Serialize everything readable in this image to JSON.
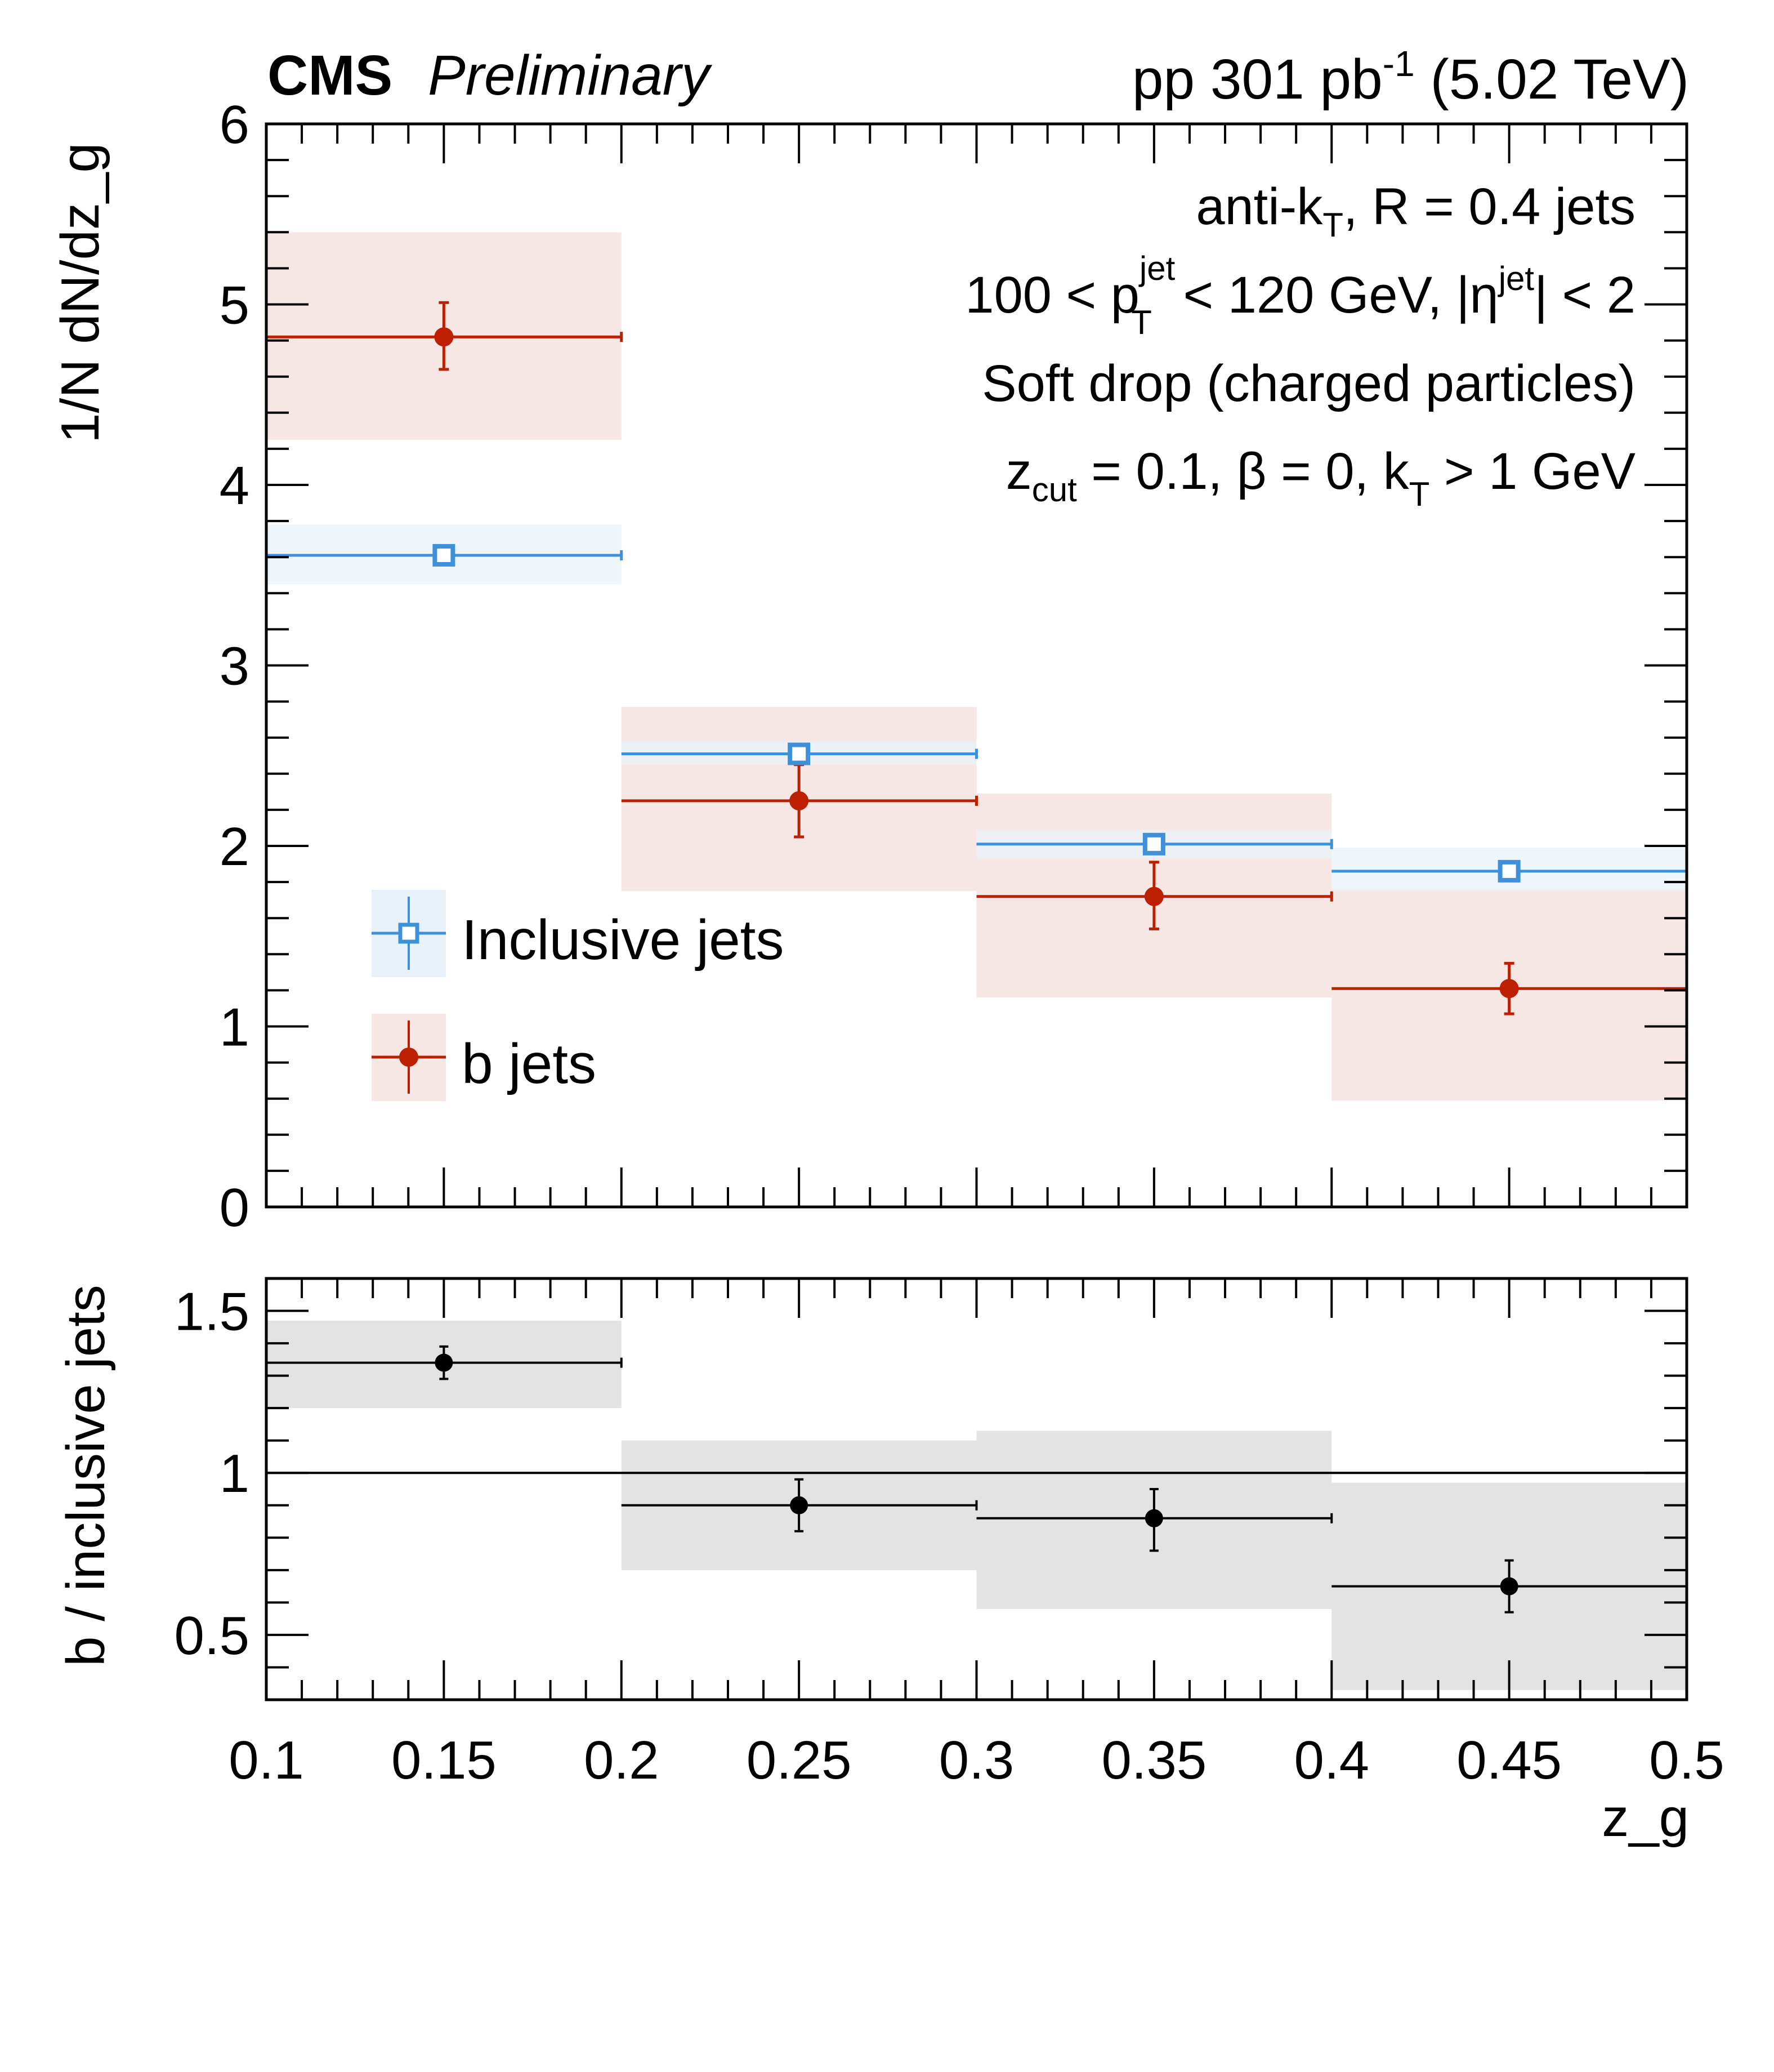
{
  "header": {
    "experiment": "CMS",
    "status": "Preliminary",
    "lumi_prefix": "pp 301 pb",
    "lumi_sup": "-1",
    "lumi_suffix": " (5.02 TeV)"
  },
  "annotations": {
    "line1_a": "anti-k",
    "line1_sub": "T",
    "line1_b": ", R = 0.4 jets",
    "line2_a": "100 < p",
    "line2_sup": "jet",
    "line2_sub": "T",
    "line2_b": " < 120 GeV, |η",
    "line2_sup2": "jet",
    "line2_c": "| < 2",
    "line3": "Soft drop (charged particles)",
    "line4_a": "z",
    "line4_sub": "cut",
    "line4_b": " = 0.1, β = 0, k",
    "line4_sub2": "T",
    "line4_c": " > 1 GeV"
  },
  "colors": {
    "inclusive": "#3f90da",
    "inclusive_band": "#e8f1fa",
    "bjets": "#bd1f01",
    "bjets_band": "#f6e6e4",
    "ratio": "#000000",
    "ratio_band": "#e3e3e3"
  },
  "chart_data": [
    {
      "type": "scatter",
      "panel": "main",
      "ylabel": "1/N dN/dz_g",
      "xlabel": "z_g",
      "xlim": [
        0.1,
        0.5
      ],
      "ylim": [
        0,
        6
      ],
      "yticks": [
        "0",
        "1",
        "2",
        "3",
        "4",
        "5",
        "6"
      ],
      "bins": [
        [
          0.1,
          0.2
        ],
        [
          0.2,
          0.3
        ],
        [
          0.3,
          0.4
        ],
        [
          0.4,
          0.5
        ]
      ],
      "x": [
        0.15,
        0.25,
        0.35,
        0.45
      ],
      "legend": {
        "placement": "center-left",
        "entries": [
          "Inclusive jets",
          "b jets"
        ]
      },
      "series": [
        {
          "name": "Inclusive jets",
          "marker": "open-square",
          "values": [
            3.61,
            2.51,
            2.01,
            1.86
          ],
          "stat_err": [
            0.02,
            0.02,
            0.02,
            0.02
          ],
          "syst_band": [
            [
              3.45,
              3.78
            ],
            [
              2.45,
              2.58
            ],
            [
              1.93,
              2.09
            ],
            [
              1.75,
              1.99
            ]
          ]
        },
        {
          "name": "b jets",
          "marker": "filled-circle",
          "values": [
            4.82,
            2.25,
            1.72,
            1.21
          ],
          "stat_err_low": [
            4.64,
            2.05,
            1.54,
            1.07
          ],
          "stat_err_high": [
            5.01,
            2.45,
            1.91,
            1.35
          ],
          "syst_band": [
            [
              4.25,
              5.4
            ],
            [
              1.75,
              2.77
            ],
            [
              1.16,
              2.29
            ],
            [
              0.59,
              1.76
            ]
          ]
        }
      ]
    },
    {
      "type": "scatter",
      "panel": "ratio",
      "ylabel": "b / inclusive jets",
      "xlabel": "z_g",
      "xlim": [
        0.1,
        0.5
      ],
      "ylim": [
        0.3,
        1.6
      ],
      "yticks": [
        "0.5",
        "1",
        "1.5"
      ],
      "xticks": [
        "0.1",
        "0.15",
        "0.2",
        "0.25",
        "0.3",
        "0.35",
        "0.4",
        "0.45",
        "0.5"
      ],
      "reference_line": 1,
      "bins": [
        [
          0.1,
          0.2
        ],
        [
          0.2,
          0.3
        ],
        [
          0.3,
          0.4
        ],
        [
          0.4,
          0.5
        ]
      ],
      "x": [
        0.15,
        0.25,
        0.35,
        0.45
      ],
      "series": [
        {
          "name": "b / inclusive jets",
          "marker": "filled-circle",
          "values": [
            1.34,
            0.9,
            0.86,
            0.65
          ],
          "stat_err_low": [
            1.29,
            0.82,
            0.76,
            0.57
          ],
          "stat_err_high": [
            1.39,
            0.98,
            0.95,
            0.73
          ],
          "syst_band": [
            [
              1.2,
              1.47
            ],
            [
              0.7,
              1.1
            ],
            [
              0.58,
              1.13
            ],
            [
              0.33,
              0.97
            ]
          ]
        }
      ]
    }
  ]
}
